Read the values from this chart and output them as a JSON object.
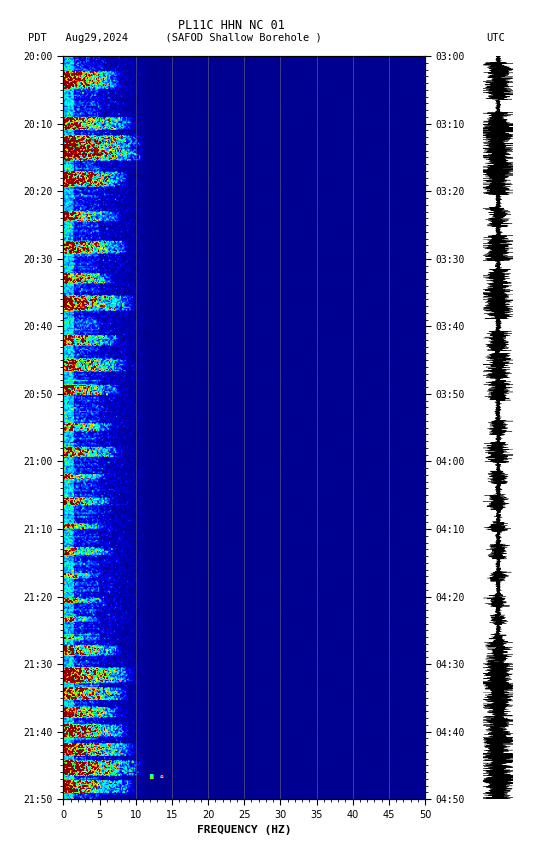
{
  "title_line1": "PL11C HHN NC 01",
  "title_line2_left": "PDT   Aug29,2024      (SAFOD Shallow Borehole )",
  "title_line2_right": "UTC",
  "left_ytick_labels": [
    "20:00",
    "20:10",
    "20:20",
    "20:30",
    "20:40",
    "20:50",
    "21:00",
    "21:10",
    "21:20",
    "21:30",
    "21:40",
    "21:50"
  ],
  "right_ytick_labels": [
    "03:00",
    "03:10",
    "03:20",
    "03:30",
    "03:40",
    "03:50",
    "04:00",
    "04:10",
    "04:20",
    "04:30",
    "04:40",
    "04:50"
  ],
  "xlabel": "FREQUENCY (HZ)",
  "freq_max": 50,
  "n_time": 600,
  "n_freq": 300,
  "background_color": "#000090",
  "fig_bg": "#ffffff",
  "figsize": [
    5.52,
    8.64
  ],
  "dpi": 100,
  "vertical_lines_x": [
    10,
    15,
    20,
    25,
    30,
    35,
    40,
    45
  ],
  "cmap_colors": [
    "#000090",
    "#0000FF",
    "#0060FF",
    "#00BFFF",
    "#00FFFF",
    "#00FF80",
    "#80FF00",
    "#FFFF00",
    "#FF8000",
    "#FF0000",
    "#8B0000"
  ]
}
